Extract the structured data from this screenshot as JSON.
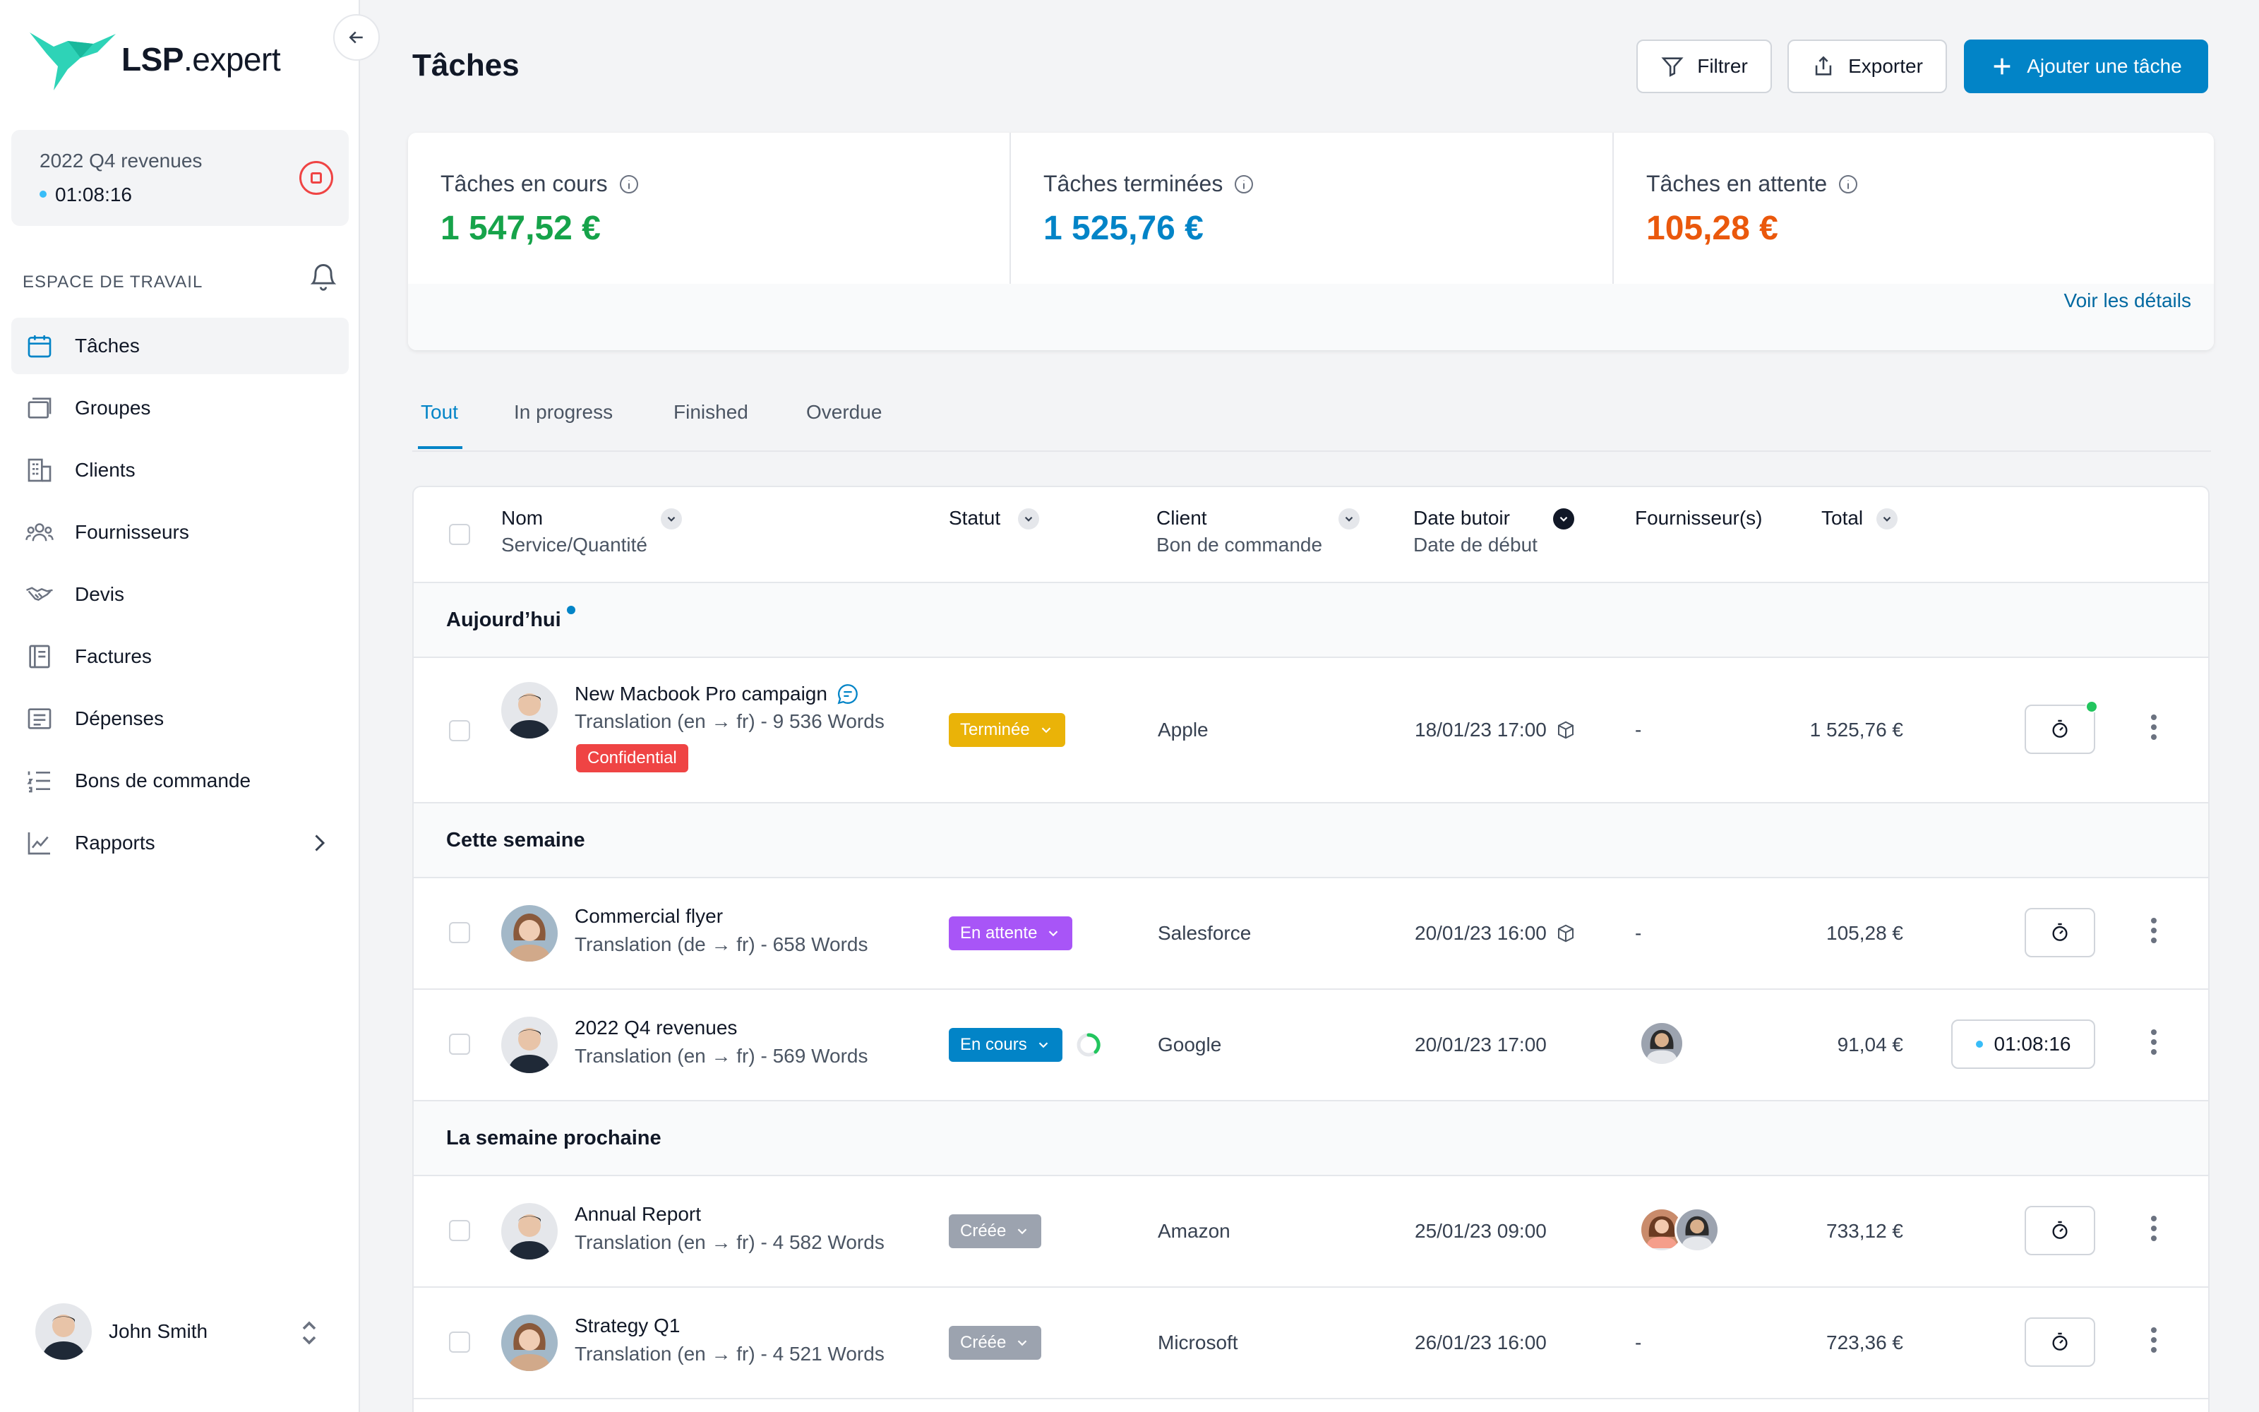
{
  "app": {
    "logo_bold": "LSP",
    "logo_rest": ".expert"
  },
  "active_timer": {
    "task": "2022 Q4 revenues",
    "time": "01:08:16"
  },
  "sidebar": {
    "section_label": "ESPACE DE TRAVAIL",
    "items": [
      {
        "label": "Tâches",
        "icon": "calendar-icon"
      },
      {
        "label": "Groupes",
        "icon": "stack-icon"
      },
      {
        "label": "Clients",
        "icon": "building-icon"
      },
      {
        "label": "Fournisseurs",
        "icon": "users-icon"
      },
      {
        "label": "Devis",
        "icon": "handshake-icon"
      },
      {
        "label": "Factures",
        "icon": "invoice-icon"
      },
      {
        "label": "Dépenses",
        "icon": "receipt-icon"
      },
      {
        "label": "Bons de commande",
        "icon": "list-icon"
      },
      {
        "label": "Rapports",
        "icon": "chart-line-icon"
      }
    ]
  },
  "user": {
    "name": "John Smith"
  },
  "header": {
    "title": "Tâches",
    "filter_label": "Filtrer",
    "export_label": "Exporter",
    "add_label": "Ajouter une tâche"
  },
  "stats": [
    {
      "label": "Tâches en cours",
      "value": "1 547,52 €",
      "color": "#16a34a"
    },
    {
      "label": "Tâches terminées",
      "value": "1 525,76 €",
      "color": "#0284c7"
    },
    {
      "label": "Tâches en attente",
      "value": "105,28 €",
      "color": "#ea580c"
    }
  ],
  "stats_link": "Voir les détails",
  "tabs": [
    "Tout",
    "In progress",
    "Finished",
    "Overdue"
  ],
  "columns": {
    "name": "Nom",
    "name_sub": "Service/Quantité",
    "status": "Statut",
    "client": "Client",
    "client_sub": "Bon de commande",
    "deadline": "Date butoir",
    "deadline_sub": "Date de début",
    "suppliers": "Fournisseur(s)",
    "total": "Total"
  },
  "groups": [
    "Aujourd’hui",
    "Cette semaine",
    "La semaine prochaine"
  ],
  "tasks": [
    {
      "name": "New Macbook Pro campaign",
      "service": "Translation (en → fr) - 9 536 Words",
      "tag": "Confidential",
      "status": "Terminée",
      "status_color": "#eab308",
      "client": "Apple",
      "deadline": "18/01/23 17:00",
      "suppliers": "-",
      "total": "1 525,76 €"
    },
    {
      "name": "Commercial flyer",
      "service": "Translation (de → fr) - 658 Words",
      "status": "En attente",
      "status_color": "#a855f7",
      "client": "Salesforce",
      "deadline": "20/01/23 16:00",
      "suppliers": "-",
      "total": "105,28 €"
    },
    {
      "name": "2022 Q4 revenues",
      "service": "Translation (en → fr) - 569 Words",
      "status": "En cours",
      "status_color": "#0284c7",
      "client": "Google",
      "deadline": "20/01/23 17:00",
      "total": "91,04 €",
      "timer": "01:08:16"
    },
    {
      "name": "Annual Report",
      "service": "Translation (en → fr) - 4 582 Words",
      "status": "Créée",
      "status_color": "#9ca3af",
      "client": "Amazon",
      "deadline": "25/01/23 09:00",
      "total": "733,12 €"
    },
    {
      "name": "Strategy Q1",
      "service": "Translation (en → fr) - 4 521 Words",
      "status": "Créée",
      "status_color": "#9ca3af",
      "client": "Microsoft",
      "deadline": "26/01/23 16:00",
      "suppliers": "-",
      "total": "723,36 €"
    }
  ]
}
